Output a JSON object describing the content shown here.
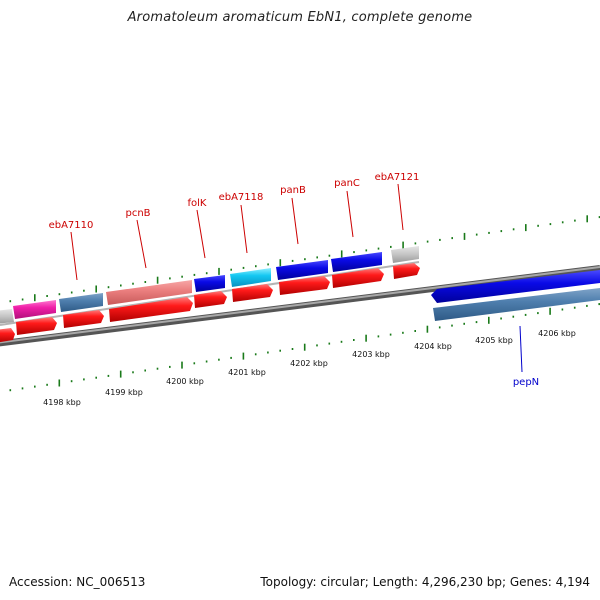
{
  "title": "Aromatoleum aromaticum EbN1, complete genome",
  "footer": {
    "accession": "Accession: NC_006513",
    "summary": "Topology: circular; Length: 4,296,230 bp; Genes: 4,194"
  },
  "colors": {
    "backbone": "#808080",
    "tick": "#1a7a1a",
    "label_red": "#cc0000",
    "label_blue": "#0000cc"
  },
  "scale_labels": [
    "4198 kbp",
    "4199 kbp",
    "4200 kbp",
    "4201 kbp",
    "4202 kbp",
    "4203 kbp",
    "4204 kbp",
    "4205 kbp",
    "4206 kbp"
  ],
  "gene_labels": [
    {
      "id": "ebA7110",
      "text": "ebA7110",
      "color": "#cc0000"
    },
    {
      "id": "pcnB",
      "text": "pcnB",
      "color": "#cc0000"
    },
    {
      "id": "folK",
      "text": "folK",
      "color": "#cc0000"
    },
    {
      "id": "ebA7118",
      "text": "ebA7118",
      "color": "#cc0000"
    },
    {
      "id": "panB",
      "text": "panB",
      "color": "#cc0000"
    },
    {
      "id": "panC",
      "text": "panC",
      "color": "#cc0000"
    },
    {
      "id": "ebA7121",
      "text": "ebA7121",
      "color": "#cc0000"
    },
    {
      "id": "pepN",
      "text": "pepN",
      "color": "#0000cc"
    }
  ]
}
